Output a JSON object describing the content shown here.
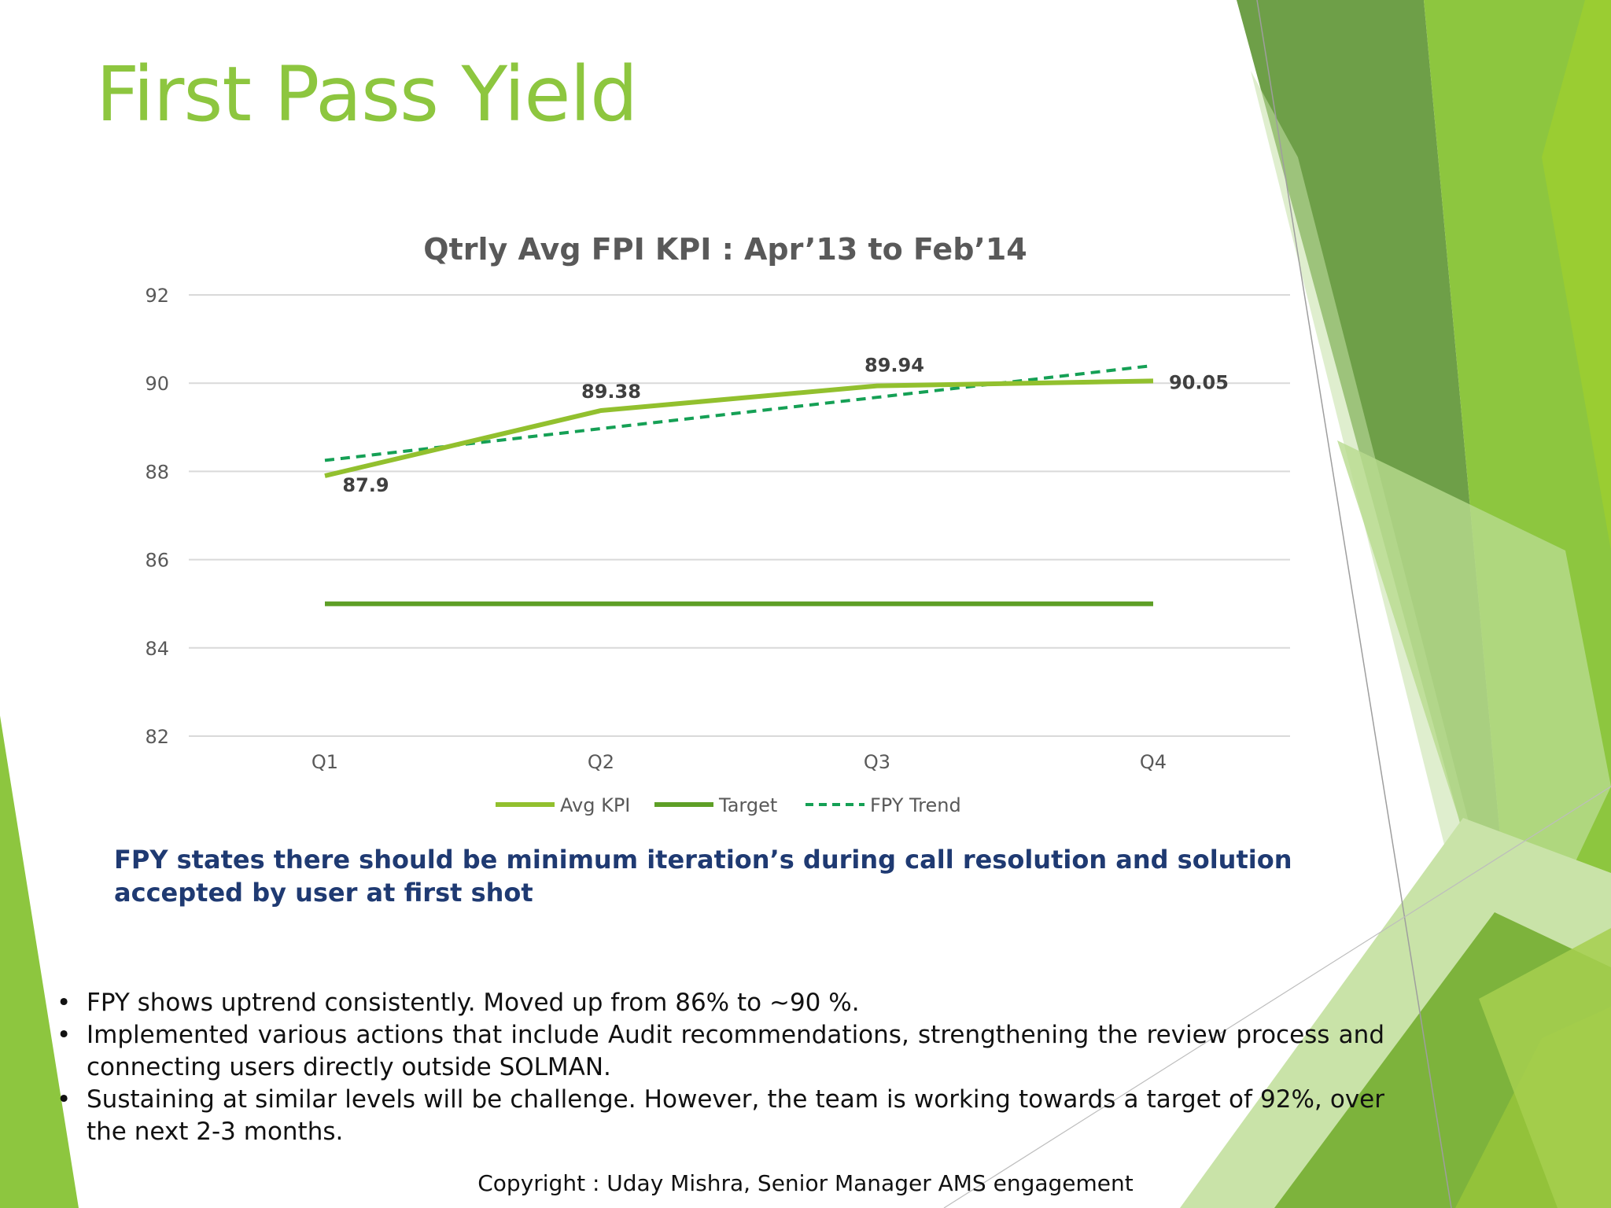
{
  "slide": {
    "title": "First Pass Yield",
    "definition": "FPY states there should be minimum iteration’s during call resolution and solution accepted by user at first shot",
    "bullets": [
      "FPY shows uptrend consistently. Moved up from 86% to ~90 %.",
      "Implemented various actions that include Audit recommendations, strengthening the review process and connecting users directly outside SOLMAN.",
      "Sustaining at similar levels will be challenge. However, the team is working towards a target of 92%, over the next 2-3 months."
    ],
    "bullet_char": "•",
    "copyright": "Copyright : Uday Mishra, Senior Manager AMS engagement"
  },
  "chart_data": {
    "type": "line",
    "title": "Qtrly Avg FPI KPI : Apr’13 to Feb’14",
    "xlabel": "",
    "ylabel": "",
    "categories": [
      "Q1",
      "Q2",
      "Q3",
      "Q4"
    ],
    "ylim": [
      82,
      92
    ],
    "yticks": [
      92,
      90,
      88,
      86,
      84,
      82
    ],
    "grid": true,
    "legend_position": "bottom",
    "series": [
      {
        "name": "Avg KPI",
        "values": [
          87.9,
          89.38,
          89.94,
          90.05
        ],
        "labels": [
          "87.9",
          "89.38",
          "89.94",
          "90.05"
        ],
        "color": "#92C02E",
        "style": "solid"
      },
      {
        "name": "Target",
        "values": [
          85,
          85,
          85,
          85
        ],
        "color": "#5E9F26",
        "style": "solid"
      },
      {
        "name": "FPY Trend",
        "values": [
          88.25,
          88.97,
          89.68,
          90.4
        ],
        "color": "#15A055",
        "style": "dashed"
      }
    ]
  },
  "theme": {
    "title_color": "#8DC63F",
    "definition_color": "#1F3A72",
    "gridline_color": "#D9D9D9"
  }
}
